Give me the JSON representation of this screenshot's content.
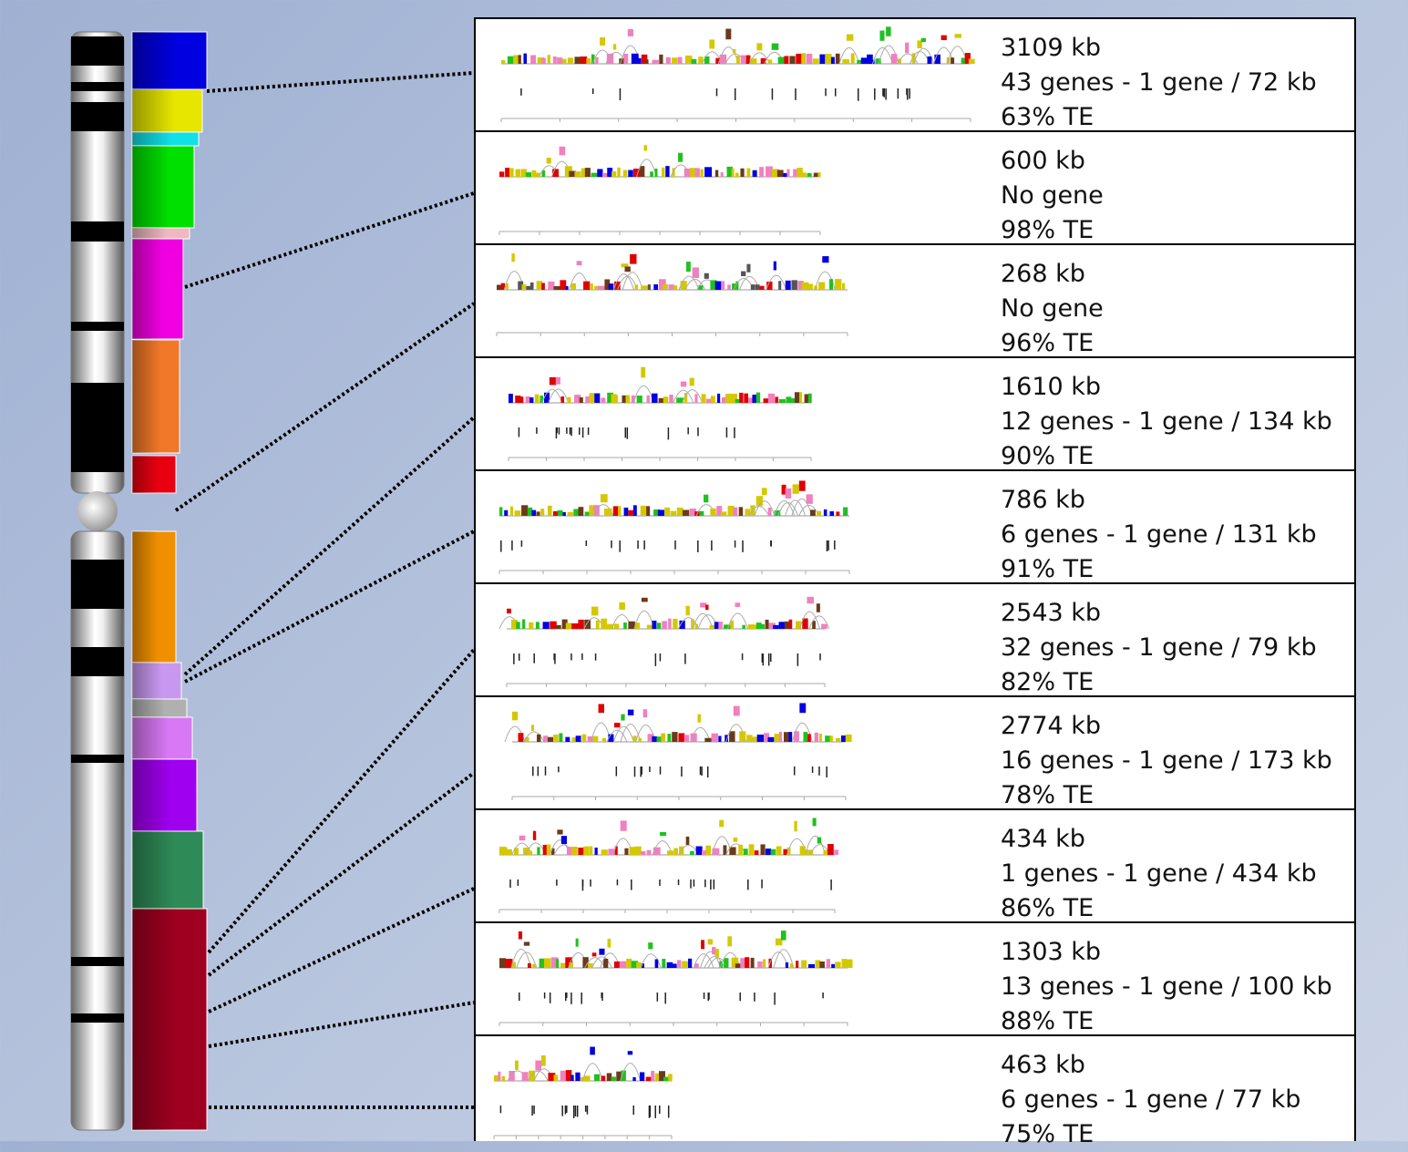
{
  "panels": [
    {
      "size": "3109 kb",
      "genes": "43 genes - 1 gene / 72 kb",
      "te": "63% TE"
    },
    {
      "size": "600 kb",
      "genes": "No gene",
      "te": "98% TE"
    },
    {
      "size": "268 kb",
      "genes": "No gene",
      "te": "96% TE"
    },
    {
      "size": "1610 kb",
      "genes": "12 genes - 1 gene / 134 kb",
      "te": "90% TE"
    },
    {
      "size": "786 kb",
      "genes": "6 genes - 1 gene / 131 kb",
      "te": "91% TE"
    },
    {
      "size": "2543 kb",
      "genes": "32 genes - 1 gene / 79 kb",
      "te": "82% TE"
    },
    {
      "size": "2774 kb",
      "genes": "16 genes - 1 gene / 173 kb",
      "te": "78% TE"
    },
    {
      "size": "434 kb",
      "genes": "1 genes - 1 gene / 434 kb",
      "te": "86% TE"
    },
    {
      "size": "1303 kb",
      "genes": "13 genes - 1 gene / 100 kb",
      "te": "88% TE"
    },
    {
      "size": "463 kb",
      "genes": "6 genes - 1 gene / 77 kb",
      "te": "75% TE"
    }
  ]
}
